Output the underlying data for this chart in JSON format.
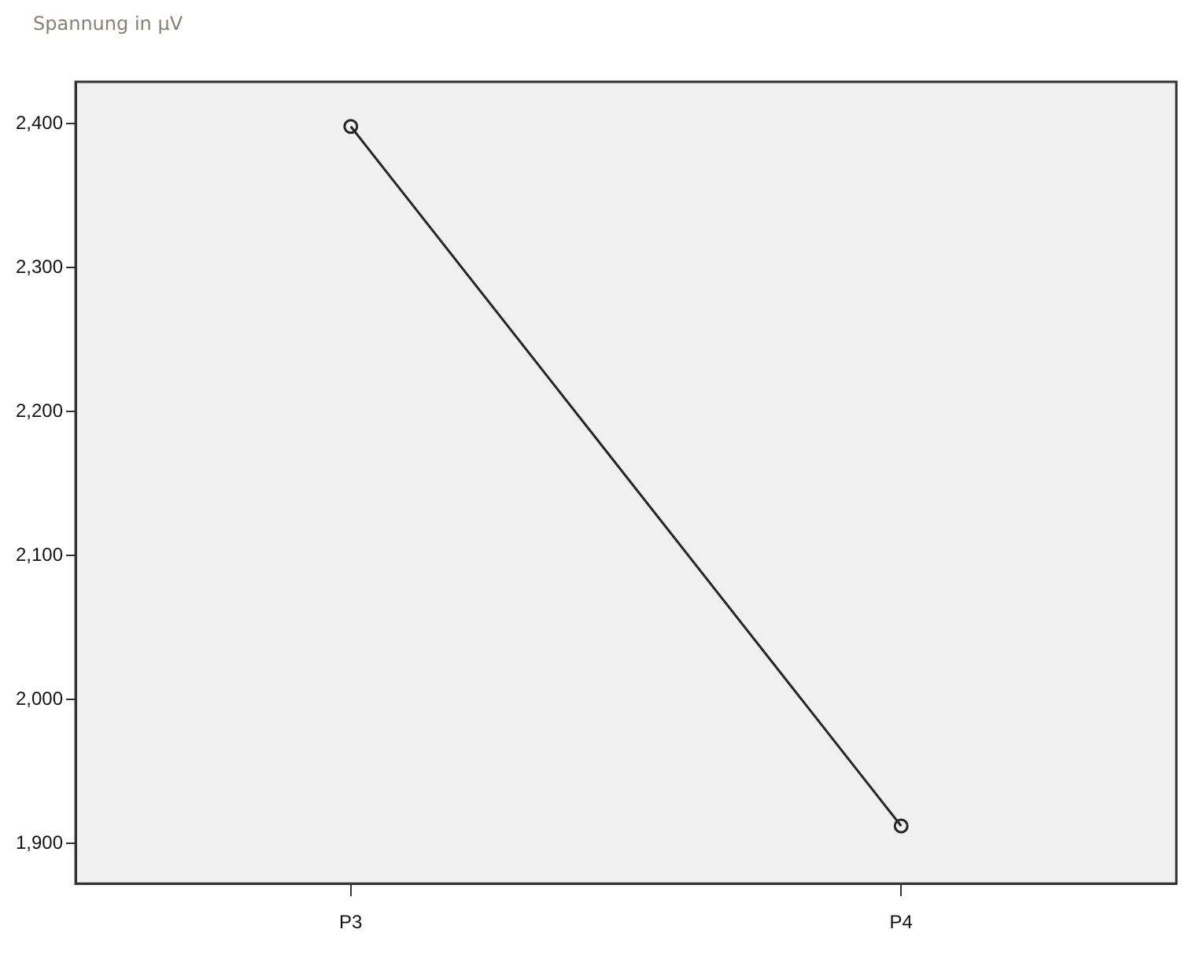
{
  "chart_data": {
    "type": "line",
    "ylabel": "Spannung  in µV",
    "categories": [
      "P3",
      "P4"
    ],
    "series": [
      {
        "color": "#262626",
        "values": [
          2398,
          1912
        ]
      }
    ],
    "ylim": [
      1872,
      2429
    ],
    "yticks": [
      {
        "value": 1900,
        "label": "1,900"
      },
      {
        "value": 2000,
        "label": "2,000"
      },
      {
        "value": 2100,
        "label": "2,100"
      },
      {
        "value": 2200,
        "label": "2,200"
      },
      {
        "value": 2300,
        "label": "2,300"
      },
      {
        "value": 2400,
        "label": "2,400"
      }
    ],
    "grid": false,
    "legend": false,
    "marker": "circle",
    "line_style": "solid"
  }
}
